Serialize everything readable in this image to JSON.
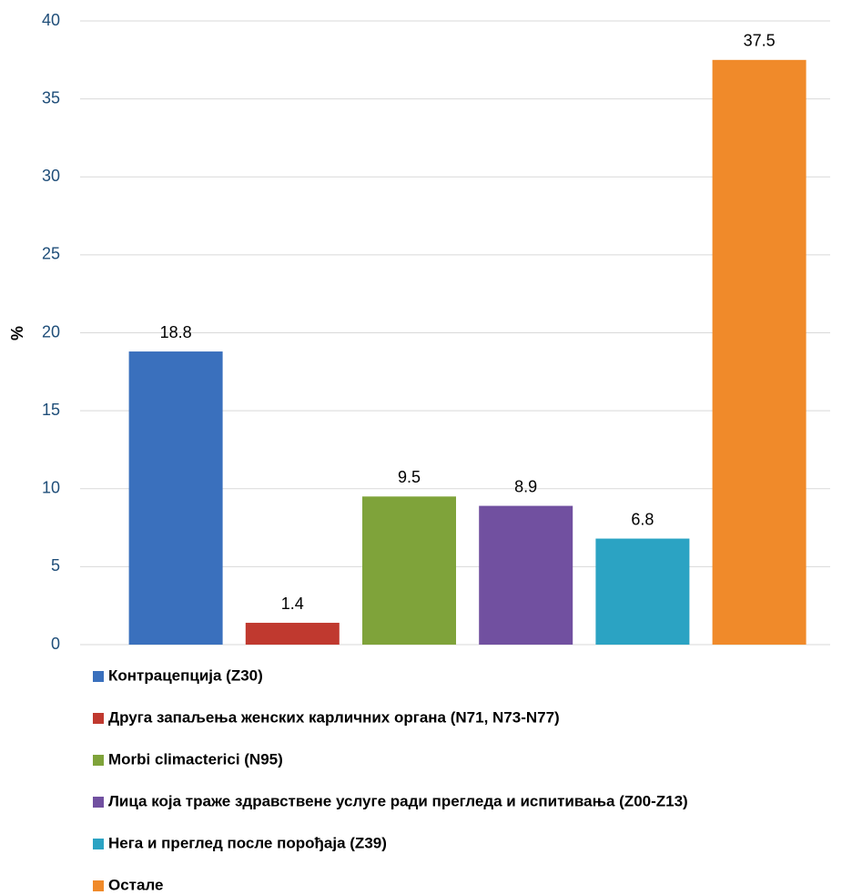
{
  "chart_data": {
    "type": "bar",
    "y_label": "%",
    "ylim": [
      0,
      40
    ],
    "yticks": [
      0,
      5,
      10,
      15,
      20,
      25,
      30,
      35,
      40
    ],
    "grid": true,
    "legend": "bottom",
    "series": [
      {
        "name": "Контрацепција (Z30)",
        "color": "#3a70bd",
        "values": [
          18.8
        ]
      },
      {
        "name": "Друга запаљења женских карличних органа (N71, N73-N77)",
        "color": "#c0392f",
        "values": [
          1.4
        ]
      },
      {
        "name": "Morbi climacterici (N95)",
        "color": "#7fa33a",
        "values": [
          9.5
        ]
      },
      {
        "name": "Лица која траже здравствене услуге ради прегледа и испитивања (Z00-Z13)",
        "color": "#7150a0",
        "values": [
          8.9
        ]
      },
      {
        "name": "Нега и преглед после порођаја (Z39)",
        "color": "#2ba3c3",
        "values": [
          6.8
        ]
      },
      {
        "name": "Остале",
        "color": "#f08a2a",
        "values": [
          37.5
        ]
      }
    ]
  }
}
